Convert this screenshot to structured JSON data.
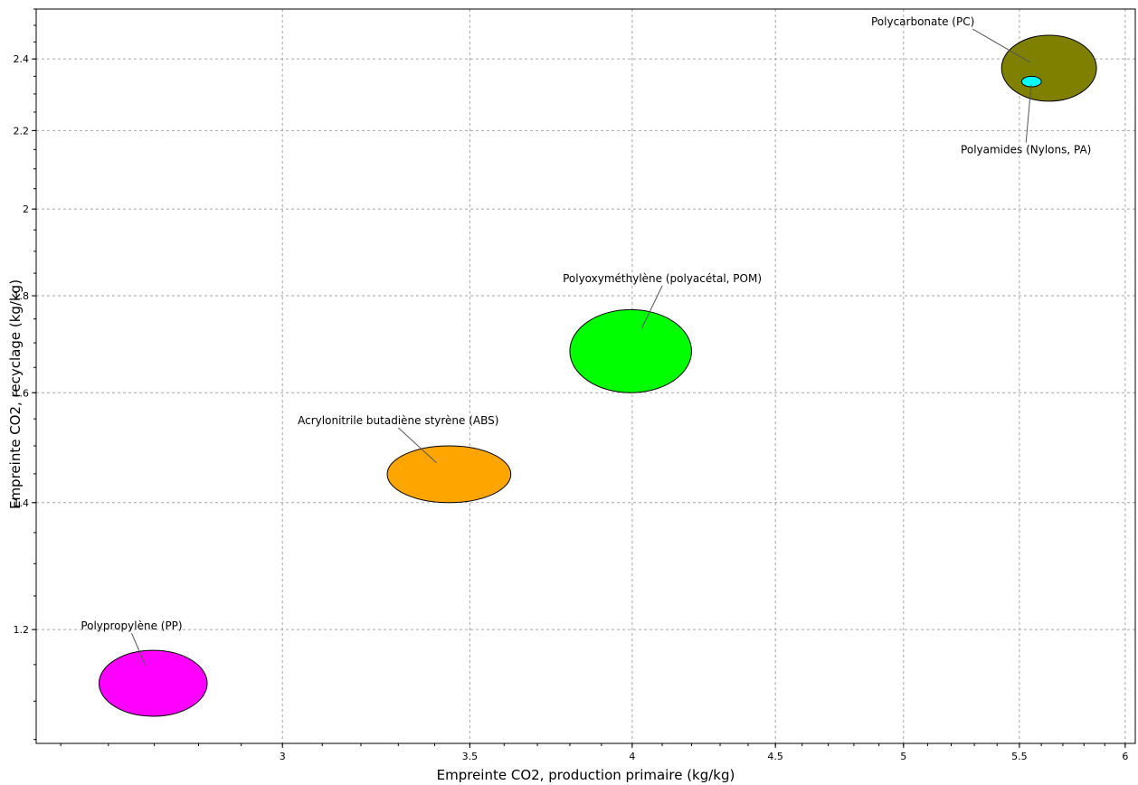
{
  "chart_data": {
    "type": "scatter",
    "xlabel": "Empreinte CO2, production primaire (kg/kg)",
    "ylabel": "Empreinte CO2, recyclage (kg/kg)",
    "x_scale": "log",
    "y_scale": "log",
    "xlim": [
      2.45,
      6.05
    ],
    "ylim": [
      1.045,
      2.55
    ],
    "x_ticks": [
      3,
      3.5,
      4,
      4.5,
      5,
      5.5,
      6
    ],
    "x_tick_labels": [
      "3",
      "3.5",
      "4",
      "4.5",
      "5",
      "5.5",
      "6"
    ],
    "y_ticks": [
      1.2,
      1.4,
      1.6,
      1.8,
      2,
      2.2,
      2.4
    ],
    "y_tick_labels": [
      "1.2",
      "1.4",
      "1.6",
      "1.8",
      "2",
      "2.2",
      "2.4"
    ],
    "grid": true,
    "legend": "none",
    "series": [
      {
        "label": "Polypropylène (PP)",
        "color": "#ff00ff",
        "x_range": [
          2.58,
          2.82
        ],
        "y_range": [
          1.08,
          1.17
        ],
        "label_x": 2.65,
        "label_y": 1.2
      },
      {
        "label": "Acrylonitrile butadiène styrène (ABS)",
        "color": "#ffa500",
        "x_range": [
          3.27,
          3.62
        ],
        "y_range": [
          1.4,
          1.5
        ],
        "label_x": 3.3,
        "label_y": 1.54
      },
      {
        "label": "Polyoxyméthylène (polyacétal, POM)",
        "color": "#00ff00",
        "x_range": [
          3.8,
          4.2
        ],
        "y_range": [
          1.6,
          1.77
        ],
        "label_x": 4.1,
        "label_y": 1.83
      },
      {
        "label": "Polycarbonate (PC)",
        "color": "#808000",
        "x_range": [
          5.42,
          5.86
        ],
        "y_range": [
          2.28,
          2.47
        ],
        "label_x": 5.08,
        "label_y": 2.5
      },
      {
        "label": "Polyamides (Nylons, PA)",
        "color": "#00ffff",
        "x_range": [
          5.51,
          5.6
        ],
        "y_range": [
          2.32,
          2.35
        ],
        "label_x": 5.53,
        "label_y": 2.14
      }
    ]
  }
}
